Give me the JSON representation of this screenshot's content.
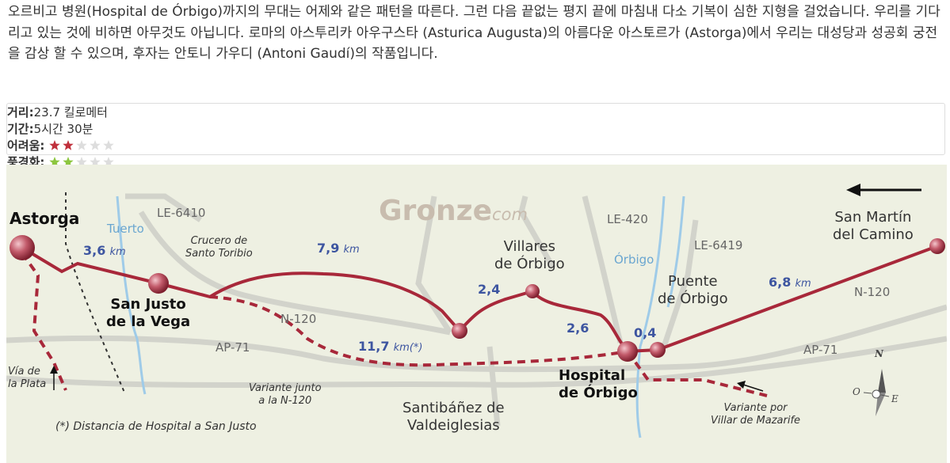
{
  "intro": "오르비고 병원(Hospital de Órbigo)까지의 무대는 어제와 같은 패턴을 따른다. 그런 다음 끝없는 평지 끝에 마침내 다소 기복이 심한 지형을 걸었습니다. 우리를 기다리고 있는 것에 비하면 아무것도 아닙니다. 로마의 아스투리카 아우구스타 (Asturica Augusta)의 아름다운 아스토르가 (Astorga)에서 우리는 대성당과 성공회 궁전을 감상 할 수 있으며, 후자는 안토니 가우디 (Antoni Gaudí)의 작품입니다.",
  "info": {
    "distance": {
      "label": "거리:",
      "value": "23.7 킬로메터"
    },
    "duration": {
      "label": "기간:",
      "value": "5시간 30분"
    },
    "difficulty": {
      "label": "어려움:",
      "rating": 2,
      "max": 5
    },
    "scenery": {
      "label": "풍경화:",
      "rating": 2,
      "max": 5
    }
  },
  "map": {
    "brand": "Gronze",
    "brand_suffix": "com",
    "places": {
      "astorga": "Astorga",
      "san_justo": "San Justo\nde la Vega",
      "crucero": "Crucero de\nSanto Toribio",
      "villares": "Villares\nde Órbigo",
      "san_martin": "San Martín\ndel Camino",
      "puente": "Puente\nde Órbigo",
      "santibanez": "Santibáñez de\nValdeiglesias",
      "hospital": "Hospital\nde Órbigo"
    },
    "roads": {
      "le6410": "LE-6410",
      "le420": "LE-420",
      "le6419": "LE-6419",
      "n120_a": "N-120",
      "n120_b": "N-120",
      "ap71_a": "AP-71",
      "ap71_b": "AP-71"
    },
    "rivers": {
      "tuerto": "Tuerto",
      "orbigo": "Órbigo"
    },
    "distances": {
      "d1": {
        "value": "3,6",
        "unit": "km"
      },
      "d2": {
        "value": "7,9",
        "unit": "km"
      },
      "d3": {
        "value": "2,4"
      },
      "d4": {
        "value": "2,6"
      },
      "d5": {
        "value": "0,4"
      },
      "d6": {
        "value": "6,8",
        "unit": "km"
      },
      "d7": {
        "value": "11,7",
        "unit": "km(*)"
      }
    },
    "notes": {
      "via_plata": "Vía de\nla Plata",
      "variante_n120": "Variante junto\na la N-120",
      "variante_mazarife": "Variante por\nVillar de Mazarife",
      "footnote": "(*) Distancia de Hospital a San Justo"
    },
    "compass": {
      "n": "N",
      "o": "O",
      "e": "E"
    }
  }
}
